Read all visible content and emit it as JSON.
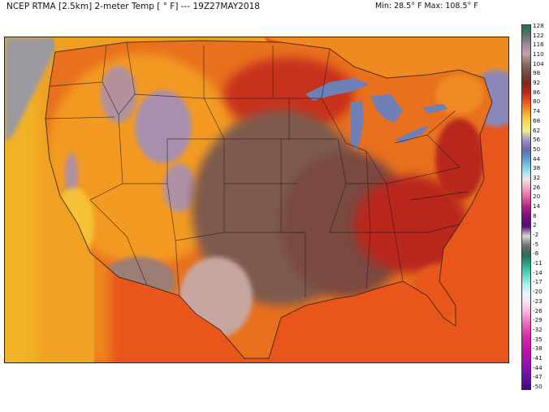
{
  "header": {
    "title": "NCEP RTMA [2.5km] 2-meter Temp [ ° F]  --- 19Z27MAY2018",
    "minmax": "Min: 28.5° F Max: 108.5° F"
  },
  "map": {
    "region": "Contiguous United States",
    "variable": "2-meter Temperature",
    "colors": {
      "ocean_warm": "#e8561c",
      "pacific": "#f2b226",
      "hot_plains": "#7d5a4e",
      "desert_pink": "#c7a6a0",
      "lakes": "#6f7fb8",
      "mountains_cool": "#9a8fc8",
      "boundary": "#1a1a1a"
    }
  },
  "legend": {
    "labels": [
      "128",
      "122",
      "116",
      "110",
      "104",
      "98",
      "92",
      "86",
      "80",
      "74",
      "68",
      "62",
      "56",
      "50",
      "44",
      "38",
      "32",
      "26",
      "20",
      "14",
      "8",
      "2",
      "-2",
      "-5",
      "-8",
      "-11",
      "-14",
      "-17",
      "-20",
      "-23",
      "-26",
      "-29",
      "-32",
      "-35",
      "-38",
      "-41",
      "-44",
      "-47",
      "-50"
    ],
    "stops": [
      {
        "v": 128,
        "c": "#1a7a56"
      },
      {
        "v": 122,
        "c": "#5a7060"
      },
      {
        "v": 116,
        "c": "#9a8aa0"
      },
      {
        "v": 110,
        "c": "#c4a0a8"
      },
      {
        "v": 104,
        "c": "#8c6e66"
      },
      {
        "v": 98,
        "c": "#6e4a40"
      },
      {
        "v": 92,
        "c": "#7c2a1a"
      },
      {
        "v": 86,
        "c": "#b8281a"
      },
      {
        "v": 80,
        "c": "#e8561c"
      },
      {
        "v": 74,
        "c": "#f5a020"
      },
      {
        "v": 68,
        "c": "#f5d84a"
      },
      {
        "v": 62,
        "c": "#f0ee88"
      },
      {
        "v": 56,
        "c": "#9e90c8"
      },
      {
        "v": 50,
        "c": "#6a6ab0"
      },
      {
        "v": 44,
        "c": "#5aa0d0"
      },
      {
        "v": 38,
        "c": "#8ad8f0"
      },
      {
        "v": 32,
        "c": "#e8e8e8"
      },
      {
        "v": 26,
        "c": "#f0a8c0"
      },
      {
        "v": 20,
        "c": "#e060a0"
      },
      {
        "v": 14,
        "c": "#b02080"
      },
      {
        "v": 8,
        "c": "#7a1080"
      },
      {
        "v": 2,
        "c": "#501070"
      },
      {
        "v": -2,
        "c": "#d8d8d8"
      },
      {
        "v": -5,
        "c": "#707070"
      },
      {
        "v": -8,
        "c": "#2a6a50"
      },
      {
        "v": -11,
        "c": "#2aa888"
      },
      {
        "v": -14,
        "c": "#5ad8c0"
      },
      {
        "v": -17,
        "c": "#a0eef0"
      },
      {
        "v": -20,
        "c": "#e8f6fa"
      },
      {
        "v": -23,
        "c": "#f8e0ee"
      },
      {
        "v": -26,
        "c": "#f8b0d8"
      },
      {
        "v": -29,
        "c": "#f070c0"
      },
      {
        "v": -32,
        "c": "#e040b0"
      },
      {
        "v": -35,
        "c": "#d020a8"
      },
      {
        "v": -38,
        "c": "#c010a8"
      },
      {
        "v": -41,
        "c": "#a010b0"
      },
      {
        "v": -44,
        "c": "#8010b0"
      },
      {
        "v": -47,
        "c": "#6010a0"
      },
      {
        "v": -50,
        "c": "#400880"
      }
    ]
  }
}
